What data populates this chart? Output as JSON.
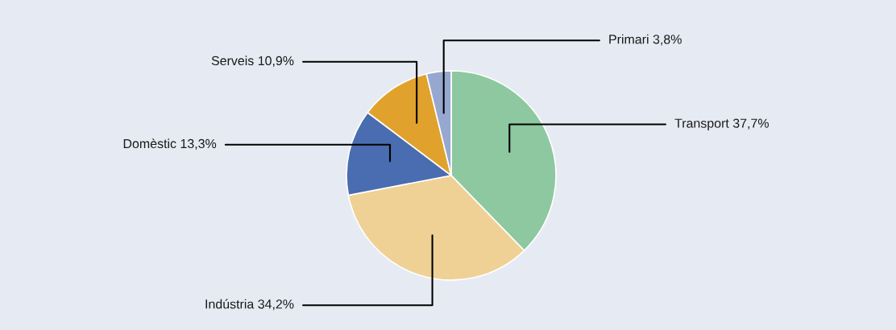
{
  "chart_data": {
    "type": "pie",
    "categories": [
      "Transport",
      "Indústria",
      "Domèstic",
      "Serveis",
      "Primari"
    ],
    "values": [
      37.7,
      34.2,
      13.3,
      10.9,
      3.8
    ],
    "value_labels": [
      "37,7%",
      "34,2%",
      "13,3%",
      "10,9%",
      "3,8%"
    ],
    "colors": [
      "#8dc8a0",
      "#efd196",
      "#4a6cb0",
      "#e0a22c",
      "#96a8d0"
    ],
    "legend": false
  }
}
